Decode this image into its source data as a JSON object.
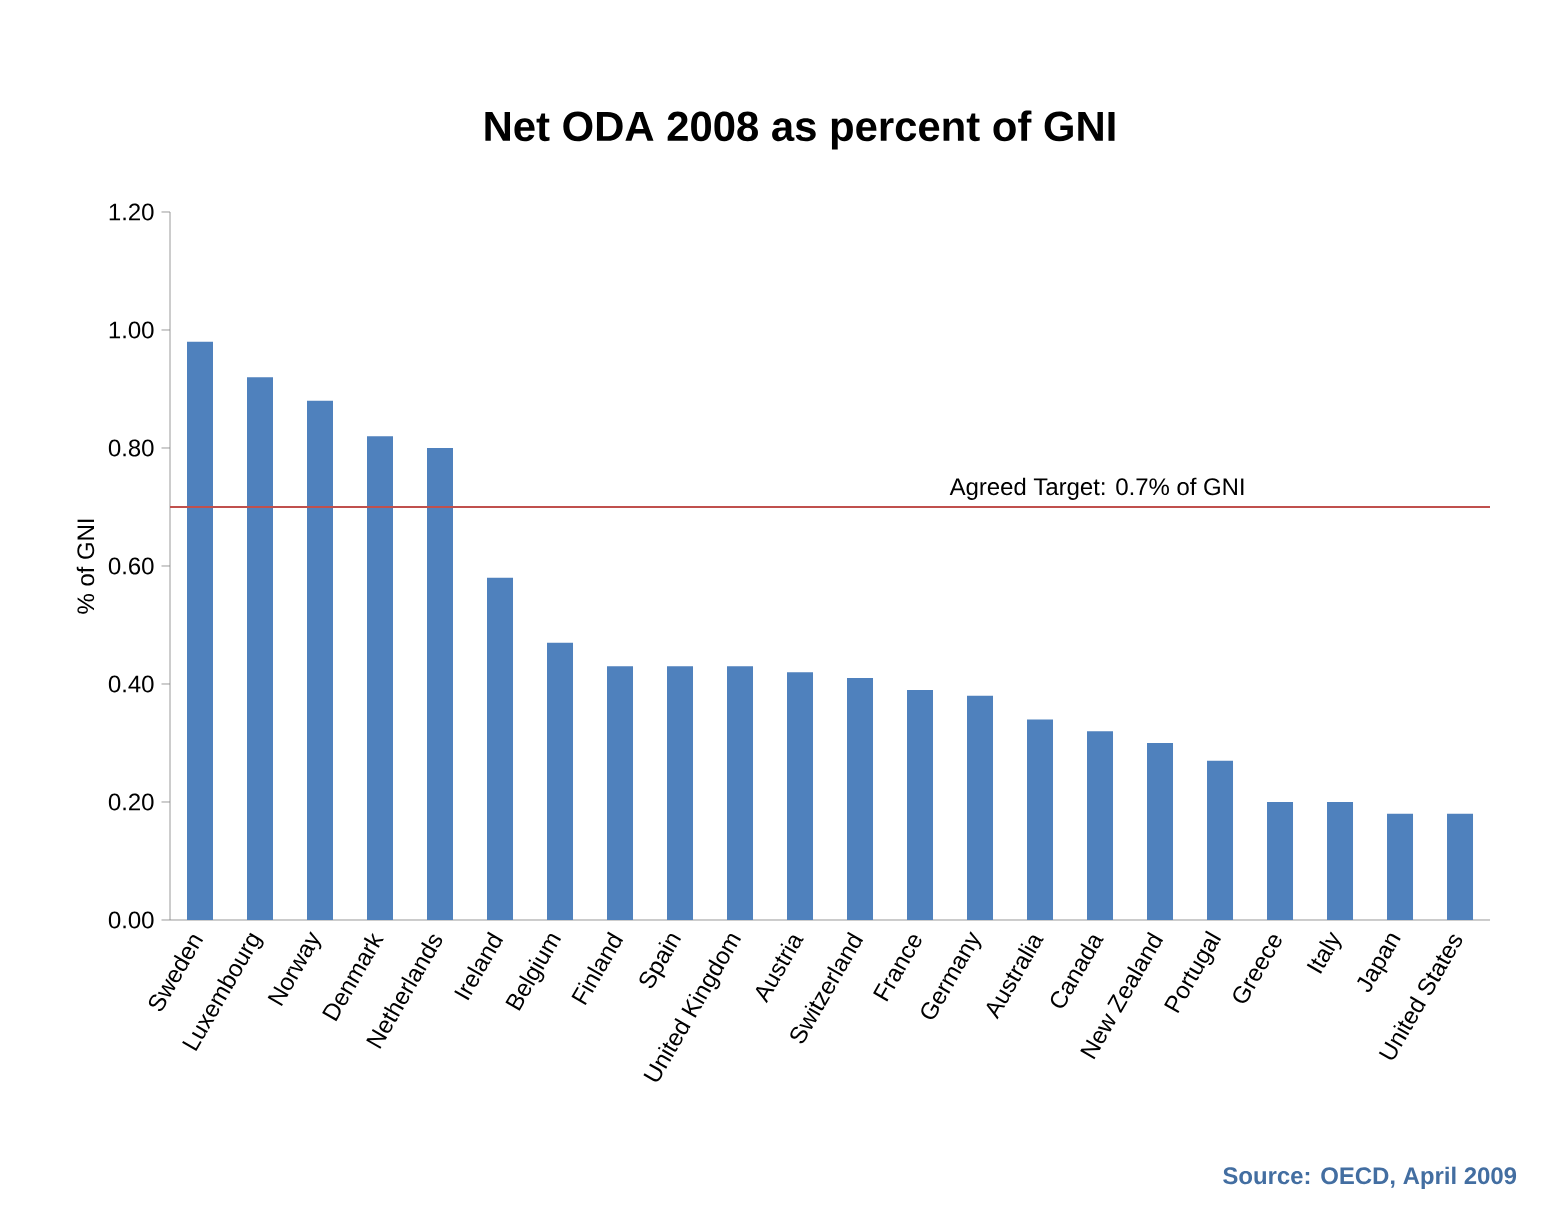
{
  "chart_data": {
    "type": "bar",
    "title": "Net ODA 2008 as percent of GNI",
    "ylabel": "% of GNI",
    "categories": [
      "Sweden",
      "Luxembourg",
      "Norway",
      "Denmark",
      "Netherlands",
      "Ireland",
      "Belgium",
      "Finland",
      "Spain",
      "United Kingdom",
      "Austria",
      "Switzerland",
      "France",
      "Germany",
      "Australia",
      "Canada",
      "New Zealand",
      "Portugal",
      "Greece",
      "Italy",
      "Japan",
      "United States"
    ],
    "values": [
      0.98,
      0.92,
      0.88,
      0.82,
      0.8,
      0.58,
      0.47,
      0.43,
      0.43,
      0.43,
      0.42,
      0.41,
      0.39,
      0.38,
      0.34,
      0.32,
      0.3,
      0.27,
      0.2,
      0.2,
      0.18,
      0.18
    ],
    "color": "#4f81bd",
    "ylim": [
      0,
      1.2
    ],
    "yticks": [
      {
        "value": 0,
        "label": "0.00"
      },
      {
        "value": 0.2,
        "label": "0.20"
      },
      {
        "value": 0.4,
        "label": "0.40"
      },
      {
        "value": 0.6,
        "label": "0.60"
      },
      {
        "value": 0.8,
        "label": "0.80"
      },
      {
        "value": 1.0,
        "label": "1.00"
      },
      {
        "value": 1.2,
        "label": "1.20"
      }
    ],
    "ref_lines": [
      {
        "axis": "y",
        "value": 0.7,
        "label": "Agreed Target: 0.7% of GNI",
        "color": "#c0504d"
      }
    ],
    "annotations": [
      "Source: OECD, April 2009"
    ]
  }
}
